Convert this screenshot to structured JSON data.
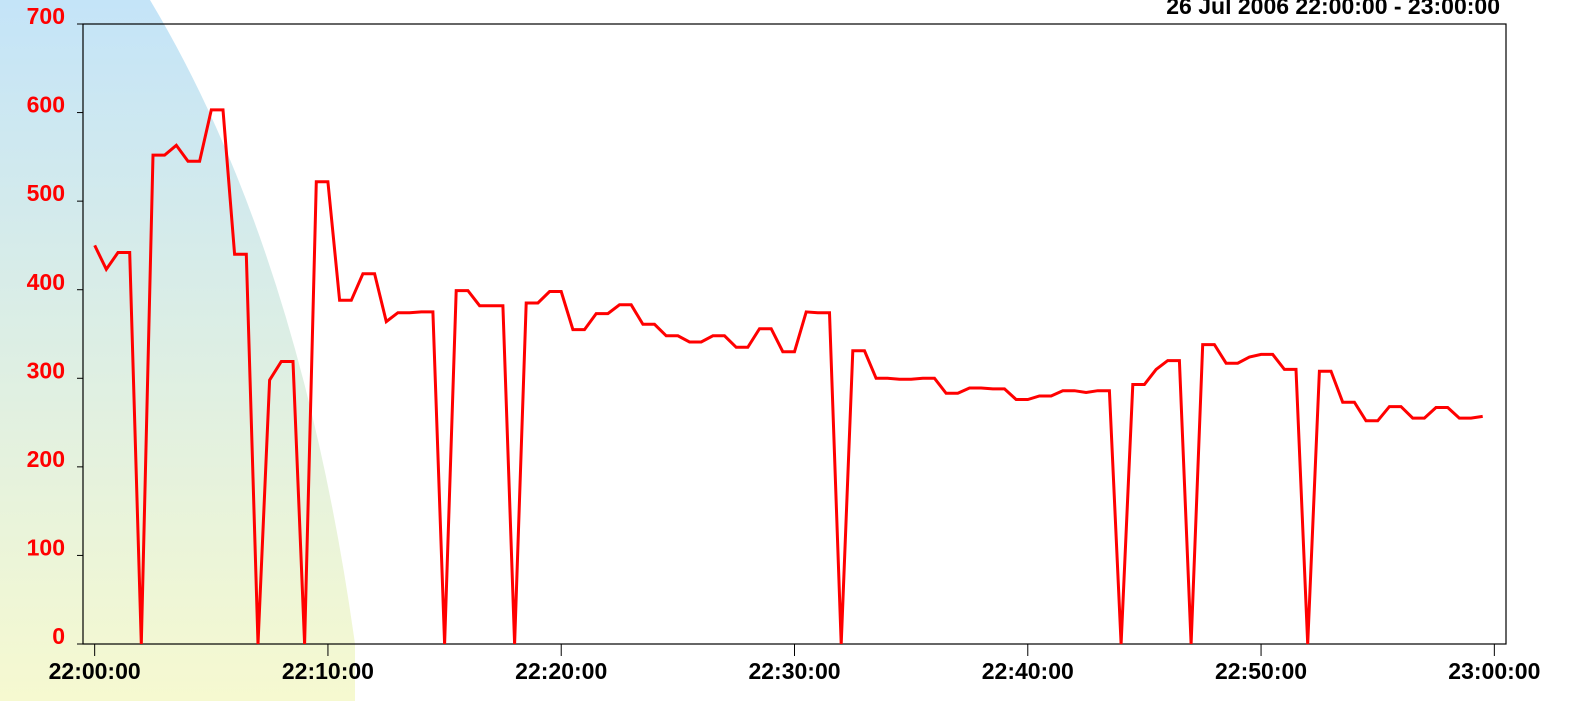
{
  "chart_data": {
    "type": "line",
    "title": "26 Jul 2006 22:00:00 - 23:00:00",
    "color": "#ff0000",
    "x": [
      0,
      0.5,
      1,
      1.5,
      2,
      2.5,
      3,
      3.5,
      4,
      4.5,
      5,
      5.5,
      6,
      6.5,
      7,
      7.5,
      8,
      8.5,
      9,
      9.5,
      10,
      10.5,
      11,
      11.5,
      12,
      12.5,
      13,
      13.5,
      14,
      14.5,
      15,
      15.5,
      16,
      16.5,
      17,
      17.5,
      18,
      18.5,
      19,
      19.5,
      20,
      20.5,
      21,
      21.5,
      22,
      22.5,
      23,
      23.5,
      24,
      24.5,
      25,
      25.5,
      26,
      26.5,
      27,
      27.5,
      28,
      28.5,
      29,
      29.5,
      30,
      30.5,
      31,
      31.5,
      32,
      32.5,
      33,
      33.5,
      34,
      34.5,
      35,
      35.5,
      36,
      36.5,
      37,
      37.5,
      38,
      38.5,
      39,
      39.5,
      40,
      40.5,
      41,
      41.5,
      42,
      42.5,
      43,
      43.5,
      44,
      44.5,
      45,
      45.5,
      46,
      46.5,
      47,
      47.5,
      48,
      48.5,
      49,
      49.5,
      50,
      50.5,
      51,
      51.5,
      52,
      52.5,
      53,
      53.5,
      54,
      54.5,
      55,
      55.5,
      56,
      56.5,
      57,
      57.5,
      58,
      58.5,
      59,
      59.5
    ],
    "values": [
      450,
      423,
      442,
      442,
      0,
      552,
      552,
      563,
      545,
      545,
      603,
      603,
      440,
      440,
      0,
      298,
      319,
      319,
      0,
      522,
      522,
      388,
      388,
      418,
      418,
      364,
      374,
      374,
      375,
      375,
      0,
      399,
      399,
      382,
      382,
      382,
      0,
      385,
      385,
      398,
      398,
      355,
      355,
      373,
      373,
      383,
      383,
      361,
      361,
      348,
      348,
      341,
      341,
      348,
      348,
      335,
      335,
      356,
      356,
      330,
      330,
      375,
      374,
      374,
      0,
      331,
      331,
      300,
      300,
      299,
      299,
      300,
      300,
      283,
      283,
      289,
      289,
      288,
      288,
      276,
      276,
      280,
      280,
      286,
      286,
      284,
      286,
      286,
      0,
      293,
      293,
      310,
      320,
      320,
      0,
      338,
      338,
      317,
      317,
      324,
      327,
      327,
      310,
      310,
      0,
      308,
      308,
      273,
      273,
      252,
      252,
      268,
      268,
      255,
      255,
      267,
      267,
      255,
      255,
      257
    ],
    "xlim": [
      -0.5,
      60.5
    ],
    "xticks": [
      {
        "value": 0,
        "label": "22:00:00"
      },
      {
        "value": 10,
        "label": "22:10:00"
      },
      {
        "value": 20,
        "label": "22:20:00"
      },
      {
        "value": 30,
        "label": "22:30:00"
      },
      {
        "value": 40,
        "label": "22:40:00"
      },
      {
        "value": 50,
        "label": "22:50:00"
      },
      {
        "value": 60,
        "label": "23:00:00"
      }
    ],
    "ylim": [
      0,
      700
    ],
    "yticks": [
      0,
      100,
      200,
      300,
      400,
      500,
      600,
      700
    ]
  }
}
